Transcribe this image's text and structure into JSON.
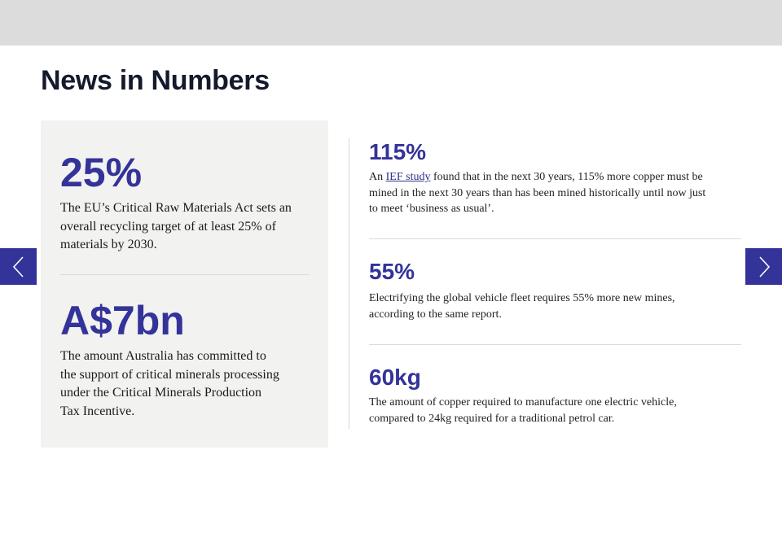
{
  "section": {
    "title": "News in Numbers"
  },
  "featured_stats": [
    {
      "value": "25%",
      "description": "The EU’s Critical Raw Materials Act sets an overall recycling target of at least 25% of materials by 2030."
    },
    {
      "value": "A$7bn",
      "description": "The amount Australia has committed to the support of critical minerals processing under the Critical Minerals Production Tax Incentive."
    }
  ],
  "stats": [
    {
      "value": "115%",
      "description_prefix": "An ",
      "link_text": "IEF study",
      "description_suffix": " found that in the next 30 years, 115% more copper must be mined in the next 30 years than has been mined historically until now just to meet ‘business as usual’."
    },
    {
      "value": "55%",
      "description": "Electrifying the global vehicle fleet requires 55% more new mines, according to the same report."
    },
    {
      "value": "60kg",
      "description": "The amount of copper required to manufacture one electric vehicle, compared to 24kg required for a traditional petrol car."
    }
  ],
  "carousel": {
    "prev_icon": "chevron-left-icon",
    "next_icon": "chevron-right-icon"
  },
  "colors": {
    "accent": "#33339a",
    "card_background": "#f2f2f0",
    "top_band": "#dcdcdc",
    "heading": "#141a2b"
  }
}
